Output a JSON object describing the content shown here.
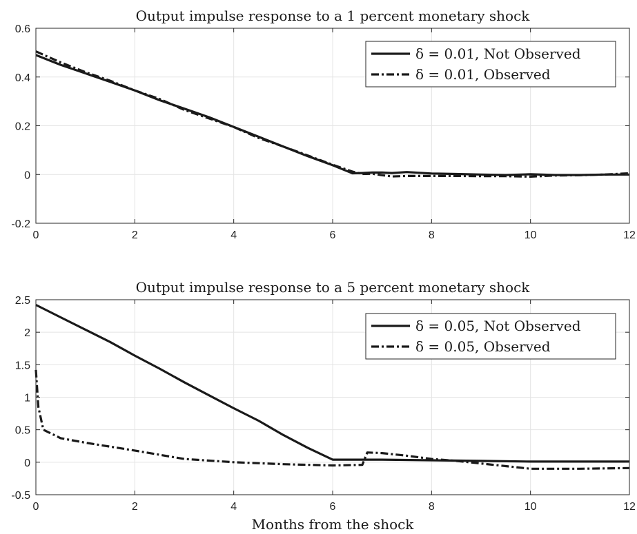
{
  "chart_data": [
    {
      "type": "line",
      "title": "Output impulse response to a 1 percent monetary shock",
      "xlabel": "",
      "ylabel": "",
      "xlim": [
        0,
        12
      ],
      "ylim": [
        -0.2,
        0.6
      ],
      "xticks": [
        0,
        2,
        4,
        6,
        8,
        10,
        12
      ],
      "xtick_labels": [
        "0",
        "2",
        "4",
        "6",
        "8",
        "10",
        "12"
      ],
      "yticks": [
        -0.2,
        0,
        0.2,
        0.4,
        0.6
      ],
      "ytick_labels": [
        "-0.2",
        "0",
        "0.2",
        "0.4",
        "0.6"
      ],
      "grid": true,
      "legend_position": "top-right",
      "series": [
        {
          "name": "δ = 0.01, Not Observed",
          "style": "solid",
          "color": "#1a1a1a",
          "x": [
            0,
            0.5,
            1,
            1.5,
            2,
            2.5,
            3,
            3.5,
            4,
            4.5,
            5,
            5.5,
            6,
            6.4,
            6.6,
            6.8,
            7,
            7.2,
            7.5,
            8,
            8.5,
            9,
            9.5,
            10,
            10.5,
            11,
            11.5,
            12
          ],
          "y": [
            0.49,
            0.45,
            0.415,
            0.38,
            0.345,
            0.305,
            0.27,
            0.235,
            0.195,
            0.155,
            0.115,
            0.075,
            0.038,
            0.005,
            0.006,
            0.008,
            0.008,
            0.006,
            0.01,
            0.004,
            0.002,
            0.0,
            -0.002,
            0.001,
            -0.002,
            -0.002,
            0.0,
            0.0
          ]
        },
        {
          "name": "δ = 0.01, Observed",
          "style": "dashdot",
          "color": "#1a1a1a",
          "x": [
            0,
            0.5,
            1,
            1.5,
            2,
            2.5,
            3,
            3.5,
            4,
            4.5,
            5,
            5.5,
            6,
            6.4,
            6.6,
            6.8,
            7,
            7.2,
            7.5,
            8,
            8.5,
            9,
            9.5,
            10,
            10.5,
            11,
            11.5,
            12
          ],
          "y": [
            0.505,
            0.46,
            0.42,
            0.385,
            0.345,
            0.31,
            0.265,
            0.23,
            0.195,
            0.15,
            0.115,
            0.078,
            0.04,
            0.012,
            0.002,
            0.003,
            -0.003,
            -0.008,
            -0.006,
            -0.006,
            -0.006,
            -0.007,
            -0.007,
            -0.009,
            -0.004,
            -0.003,
            0.0,
            0.005
          ]
        }
      ]
    },
    {
      "type": "line",
      "title": "Output impulse response to a 5 percent monetary shock",
      "xlabel": "Months from the shock",
      "ylabel": "",
      "xlim": [
        0,
        12
      ],
      "ylim": [
        -0.5,
        2.5
      ],
      "xticks": [
        0,
        2,
        4,
        6,
        8,
        10,
        12
      ],
      "xtick_labels": [
        "0",
        "2",
        "4",
        "6",
        "8",
        "10",
        "12"
      ],
      "yticks": [
        -0.5,
        0,
        0.5,
        1,
        1.5,
        2,
        2.5
      ],
      "ytick_labels": [
        "-0.5",
        "0",
        "0.5",
        "1",
        "1.5",
        "2",
        "2.5"
      ],
      "grid": true,
      "legend_position": "top-right",
      "series": [
        {
          "name": "δ = 0.05, Not Observed",
          "style": "solid",
          "color": "#1a1a1a",
          "x": [
            0,
            0.5,
            1,
            1.5,
            2,
            2.5,
            3,
            3.5,
            4,
            4.5,
            5,
            5.5,
            6,
            7,
            8,
            9,
            10,
            11,
            12
          ],
          "y": [
            2.42,
            2.23,
            2.04,
            1.85,
            1.64,
            1.44,
            1.23,
            1.03,
            0.83,
            0.64,
            0.42,
            0.22,
            0.04,
            0.04,
            0.03,
            0.02,
            0.01,
            0.01,
            0.01
          ]
        },
        {
          "name": "δ = 0.05, Observed",
          "style": "dashdot",
          "color": "#1a1a1a",
          "x": [
            0,
            0.05,
            0.15,
            0.5,
            1,
            2,
            3,
            4,
            5,
            6,
            6.6,
            6.7,
            7,
            7.5,
            8,
            8.5,
            9,
            9.5,
            10,
            11,
            12
          ],
          "y": [
            1.42,
            0.85,
            0.5,
            0.37,
            0.3,
            0.18,
            0.05,
            0.0,
            -0.03,
            -0.05,
            -0.04,
            0.15,
            0.14,
            0.1,
            0.05,
            0.02,
            -0.02,
            -0.06,
            -0.1,
            -0.1,
            -0.09
          ]
        }
      ]
    }
  ]
}
